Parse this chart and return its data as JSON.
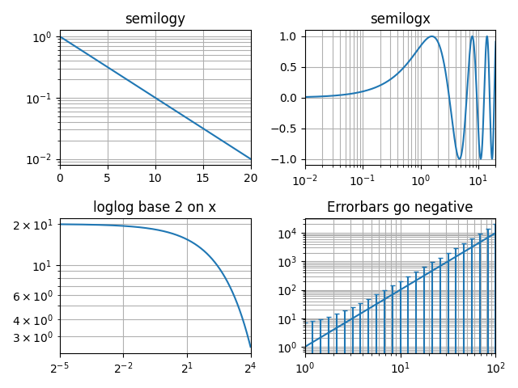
{
  "semilogy_title": "semilogy",
  "semilogx_title": "semilogx",
  "loglog_title": "loglog base 2 on x",
  "errorbars_title": "Errorbars go negative",
  "line_color": "#1f77b4",
  "fig_facecolor": "white"
}
